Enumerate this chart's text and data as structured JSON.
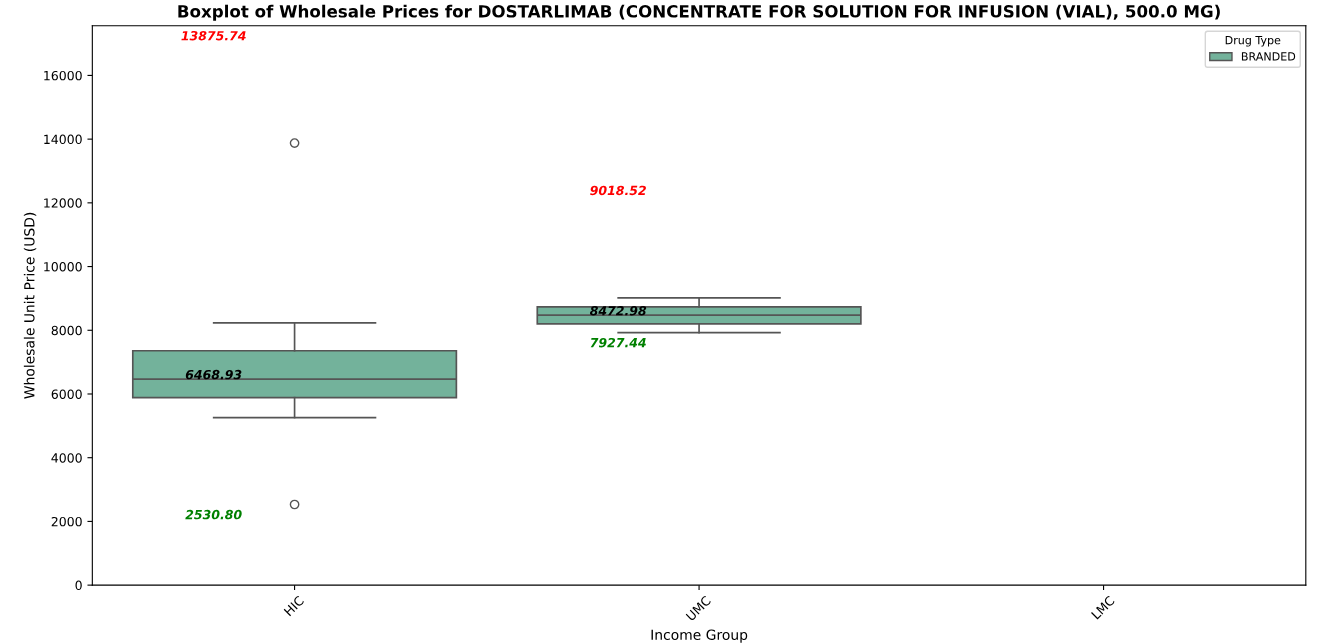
{
  "chart_data": {
    "type": "box",
    "title": "Boxplot of Wholesale Prices for DOSTARLIMAB (CONCENTRATE FOR SOLUTION FOR INFUSION (VIAL), 500.0 MG)",
    "xlabel": "Income Group",
    "ylabel": "Wholesale Unit Price (USD)",
    "legend_title": "Drug Type",
    "legend": "top right",
    "grid": false,
    "categories": [
      "HIC",
      "UMC",
      "LMC"
    ],
    "series": [
      {
        "name": "BRANDED",
        "color": "#73b29b",
        "boxes": [
          {
            "low": 5260,
            "q1": 5886,
            "median": 6468.93,
            "q3": 7357,
            "high": 8234,
            "outliers": [
              13875.74,
              2530.8
            ]
          },
          {
            "low": 7927.44,
            "q1": 8203,
            "median": 8472.98,
            "q3": 8735,
            "high": 9018.52
          },
          null
        ]
      }
    ],
    "ylim": [
      0,
      17560
    ],
    "yticks": [
      0,
      2000,
      4000,
      6000,
      8000,
      10000,
      12000,
      14000,
      16000
    ],
    "annotations": [
      "13875.74",
      "6468.93",
      "2530.80",
      "9018.52",
      "8472.98",
      "7927.44"
    ]
  }
}
